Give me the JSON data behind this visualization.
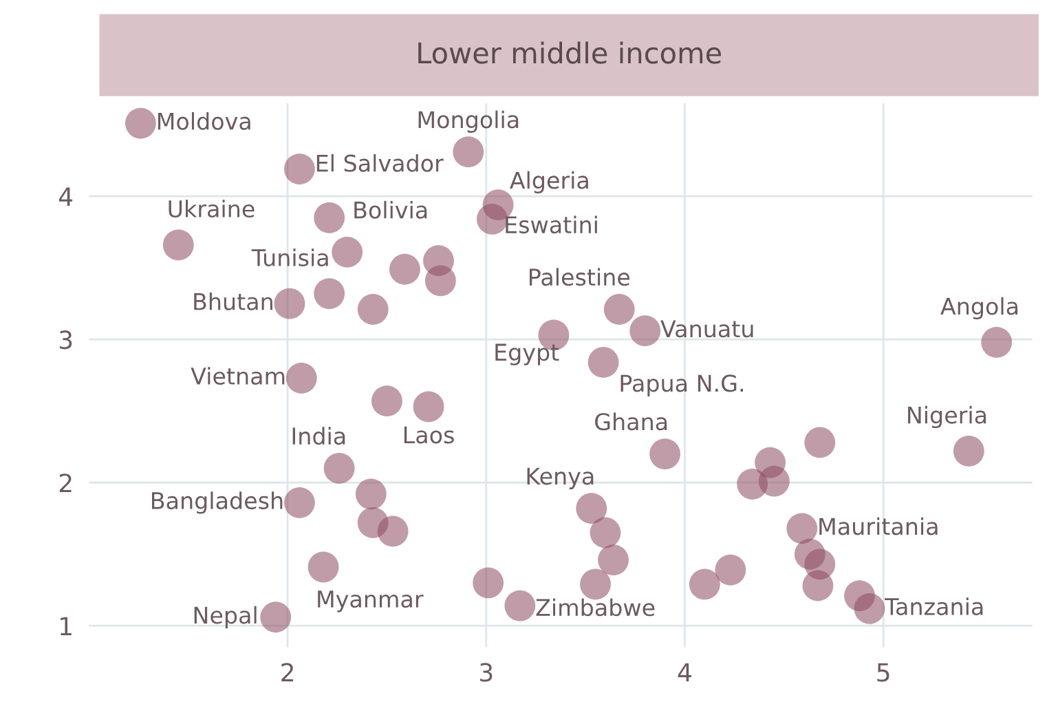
{
  "chart_data": {
    "type": "scatter",
    "title": "Lower middle income",
    "xlim": [
      1.0,
      5.75
    ],
    "ylim": [
      0.85,
      4.65
    ],
    "xticks": [
      2,
      3,
      4,
      5
    ],
    "yticks": [
      1,
      2,
      3,
      4
    ],
    "grid": true,
    "marker": "circle",
    "series": [
      {
        "color": "#8c4a60",
        "x": [
          1.26,
          2.06,
          2.91,
          3.06,
          3.03,
          1.45,
          2.21,
          2.3,
          2.21,
          2.43,
          2.01,
          2.59,
          2.76,
          2.77,
          3.67,
          3.8,
          3.34,
          3.59,
          5.57,
          2.07,
          2.5,
          2.71,
          2.26,
          2.06,
          2.42,
          2.43,
          2.53,
          2.18,
          1.94,
          3.01,
          3.17,
          3.9,
          4.43,
          4.34,
          4.45,
          4.68,
          5.43,
          3.53,
          3.6,
          3.64,
          3.55,
          4.23,
          4.1,
          4.59,
          4.63,
          4.68,
          4.67,
          4.88,
          4.93
        ],
        "values": [
          4.51,
          4.19,
          4.31,
          3.94,
          3.84,
          3.66,
          3.85,
          3.61,
          3.32,
          3.21,
          3.25,
          3.49,
          3.55,
          3.41,
          3.21,
          3.06,
          3.03,
          2.84,
          2.98,
          2.73,
          2.57,
          2.53,
          2.1,
          1.86,
          1.92,
          1.72,
          1.66,
          1.41,
          1.06,
          1.3,
          1.14,
          2.2,
          2.14,
          1.99,
          2.01,
          2.28,
          2.22,
          1.82,
          1.65,
          1.46,
          1.29,
          1.39,
          1.29,
          1.68,
          1.5,
          1.43,
          1.28,
          1.21,
          1.12
        ]
      }
    ],
    "annotations": [
      {
        "text": "Moldova",
        "x": 1.26,
        "y": 4.51
      },
      {
        "text": "El Salvador",
        "x": 2.06,
        "y": 4.19
      },
      {
        "text": "Mongolia",
        "x": 2.91,
        "y": 4.31
      },
      {
        "text": "Algeria",
        "x": 3.06,
        "y": 3.94
      },
      {
        "text": "Eswatini",
        "x": 3.03,
        "y": 3.84
      },
      {
        "text": "Ukraine",
        "x": 1.45,
        "y": 3.66
      },
      {
        "text": "Bolivia",
        "x": 2.21,
        "y": 3.85
      },
      {
        "text": "Tunisia",
        "x": 2.3,
        "y": 3.61
      },
      {
        "text": "Bhutan",
        "x": 2.01,
        "y": 3.25
      },
      {
        "text": "Palestine",
        "x": 3.67,
        "y": 3.21
      },
      {
        "text": "Vanuatu",
        "x": 3.8,
        "y": 3.06
      },
      {
        "text": "Egypt",
        "x": 3.34,
        "y": 3.03
      },
      {
        "text": "Papua N.G.",
        "x": 3.59,
        "y": 2.84
      },
      {
        "text": "Angola",
        "x": 5.57,
        "y": 2.98
      },
      {
        "text": "Vietnam",
        "x": 2.07,
        "y": 2.73
      },
      {
        "text": "Laos",
        "x": 2.71,
        "y": 2.53
      },
      {
        "text": "India",
        "x": 2.26,
        "y": 2.1
      },
      {
        "text": "Bangladesh",
        "x": 2.06,
        "y": 1.86
      },
      {
        "text": "Myanmar",
        "x": 2.18,
        "y": 1.41
      },
      {
        "text": "Nepal",
        "x": 1.94,
        "y": 1.06
      },
      {
        "text": "Zimbabwe",
        "x": 3.17,
        "y": 1.14
      },
      {
        "text": "Ghana",
        "x": 3.9,
        "y": 2.2
      },
      {
        "text": "Nigeria",
        "x": 5.43,
        "y": 2.22
      },
      {
        "text": "Kenya",
        "x": 3.53,
        "y": 1.82
      },
      {
        "text": "Mauritania",
        "x": 4.59,
        "y": 1.68
      },
      {
        "text": "Tanzania",
        "x": 4.93,
        "y": 1.12
      }
    ]
  }
}
